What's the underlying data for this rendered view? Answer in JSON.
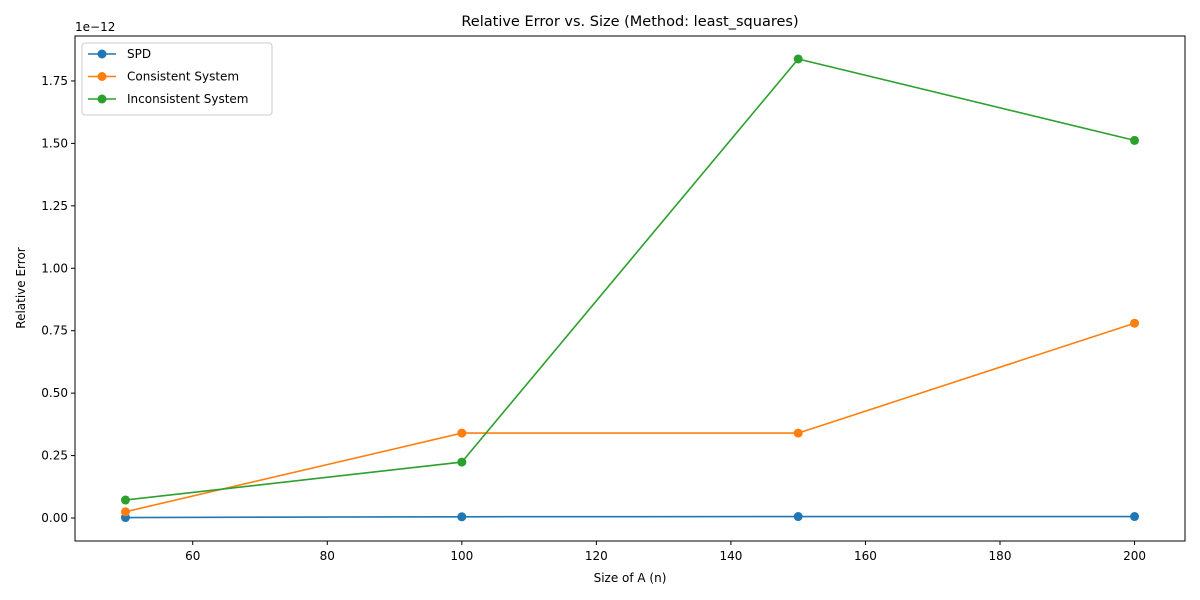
{
  "chart_data": {
    "type": "line",
    "title": "Relative Error vs. Size (Method: least_squares)",
    "xlabel": "Size of A (n)",
    "ylabel": "Relative Error",
    "y_offset_text": "1e−12",
    "x": [
      50,
      100,
      150,
      200
    ],
    "xlim": [
      42.5,
      207.5
    ],
    "ylim": [
      -0.092,
      1.93
    ],
    "y_scale_exponent": -12,
    "x_ticks": [
      60,
      80,
      100,
      120,
      140,
      160,
      180,
      200
    ],
    "x_tick_labels": [
      "60",
      "80",
      "100",
      "120",
      "140",
      "160",
      "180",
      "200"
    ],
    "y_ticks": [
      0,
      0.25,
      0.5,
      0.75,
      1.0,
      1.25,
      1.5,
      1.75
    ],
    "y_tick_labels": [
      "0.00",
      "0.25",
      "0.50",
      "0.75",
      "1.00",
      "1.25",
      "1.50",
      "1.75"
    ],
    "grid": false,
    "legend_position": "top-left",
    "marker": "circle",
    "series": [
      {
        "name": "SPD",
        "color": "#1f77b4",
        "values": [
          0.002,
          0.005,
          0.006,
          0.006
        ]
      },
      {
        "name": "Consistent System",
        "color": "#ff7f0e",
        "values": [
          0.025,
          0.34,
          0.34,
          0.78
        ]
      },
      {
        "name": "Inconsistent System",
        "color": "#2ca02c",
        "values": [
          0.072,
          0.224,
          1.838,
          1.512
        ]
      }
    ]
  }
}
